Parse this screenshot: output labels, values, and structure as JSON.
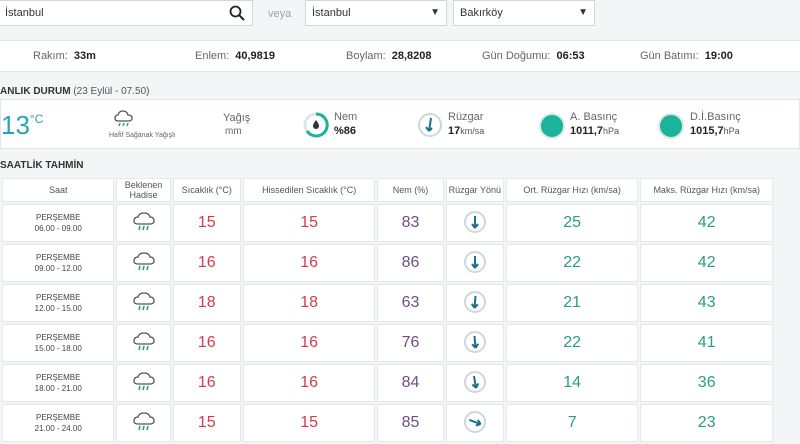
{
  "search": {
    "value": "İstanbul"
  },
  "veya": "veya",
  "selects": {
    "city": "İstanbul",
    "district": "Bakırköy"
  },
  "info": {
    "rakim_label": "Rakım:",
    "rakim_value": "33m",
    "enlem_label": "Enlem:",
    "enlem_value": "40,9819",
    "boylam_label": "Boylam:",
    "boylam_value": "28,8208",
    "gundogumu_label": "Gün Doğumu:",
    "gundogumu_value": "06:53",
    "gunbatimi_label": "Gün Batımı:",
    "gunbatimi_value": "19:00"
  },
  "current": {
    "title": "ANLIK DURUM",
    "date": "(23 Eylül - 07.50)",
    "temp": "13",
    "unit": "°C",
    "condition": "Hafif Sağanak Yağışlı",
    "rain_label": "Yağış",
    "rain_unit": "mm",
    "nem_label": "Nem",
    "nem_value": "%86",
    "ruzgar_label": "Rüzgar",
    "ruzgar_value": "17",
    "ruzgar_unit": "km/sa",
    "abasinc_label": "A. Basınç",
    "abasinc_value": "1011,7",
    "abasinc_unit": "hPa",
    "dibasinc_label": "D.İ.Basınç",
    "dibasinc_value": "1015,7",
    "dibasinc_unit": "hPa",
    "colors": {
      "accent": "#2aa4b5",
      "circle": "#1bb39a"
    }
  },
  "hourly": {
    "title": "SAATLİK TAHMİN",
    "headers": [
      "Saat",
      "Beklenen Hadise",
      "Sıcaklık (°C)",
      "Hissedilen Sıcaklık (°C)",
      "Nem (%)",
      "Rüzgar Yönü",
      "Ort. Rüzgar Hızı (km/sa)",
      "Maks. Rüzgar Hızı (km/sa)"
    ],
    "rows": [
      {
        "day": "PERŞEMBE",
        "time": "06.00 - 09.00",
        "temp": "15",
        "feel": "15",
        "hum": "83",
        "avg": "25",
        "max": "42"
      },
      {
        "day": "PERŞEMBE",
        "time": "09.00 - 12.00",
        "temp": "16",
        "feel": "16",
        "hum": "86",
        "avg": "22",
        "max": "42"
      },
      {
        "day": "PERŞEMBE",
        "time": "12.00 - 15.00",
        "temp": "18",
        "feel": "18",
        "hum": "63",
        "avg": "21",
        "max": "43"
      },
      {
        "day": "PERŞEMBE",
        "time": "15.00 - 18.00",
        "temp": "16",
        "feel": "16",
        "hum": "76",
        "avg": "22",
        "max": "41"
      },
      {
        "day": "PERŞEMBE",
        "time": "18.00 - 21.00",
        "temp": "16",
        "feel": "16",
        "hum": "84",
        "avg": "14",
        "max": "36"
      },
      {
        "day": "PERŞEMBE",
        "time": "21.00 - 24.00",
        "temp": "15",
        "feel": "15",
        "hum": "85",
        "avg": "7",
        "max": "23"
      }
    ]
  }
}
